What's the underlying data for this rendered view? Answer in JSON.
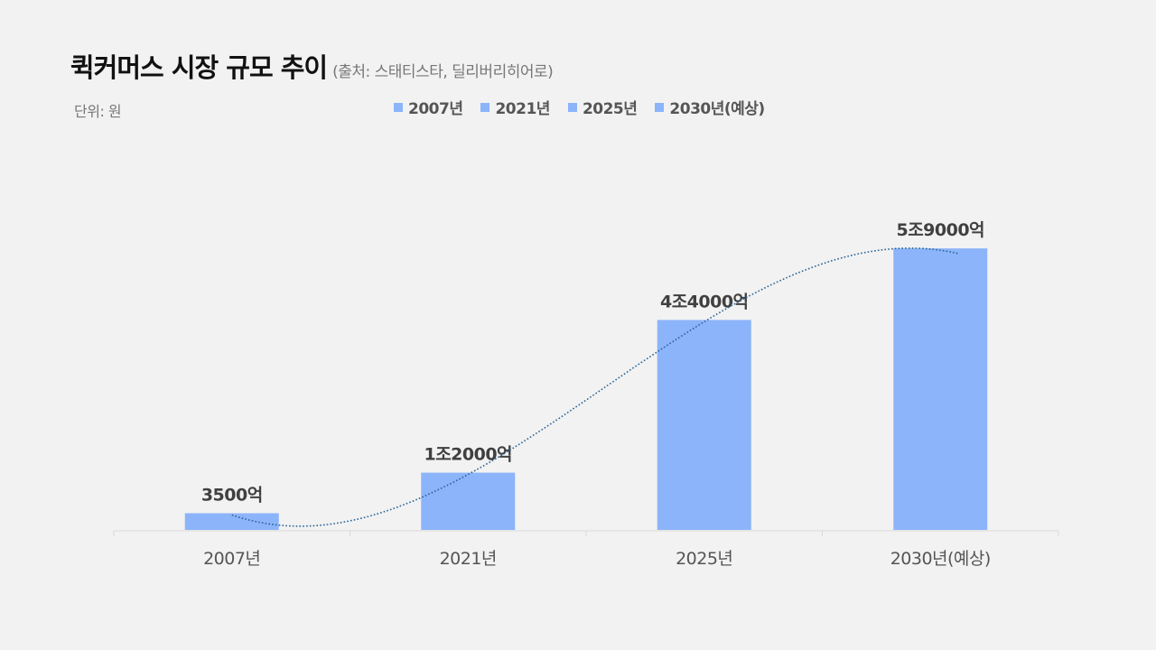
{
  "header": {
    "title": "퀵커머스 시장 규모 추이",
    "source": "(출처: 스태티스타, 딜리버리히어로)",
    "unit": "단위: 원"
  },
  "colors": {
    "bar": "#8cb4fa",
    "trendline": "#2a6496",
    "axis": "#d9d9d9",
    "label": "#404040",
    "tick": "#555555"
  },
  "chart_data": {
    "type": "bar",
    "title": "퀵커머스 시장 규모 추이",
    "ylabel": "",
    "xlabel": "",
    "unit": "단위: 원",
    "categories": [
      "2007년",
      "2021년",
      "2025년",
      "2030년(예상)"
    ],
    "values": [
      350000000000,
      1200000000000,
      4400000000000,
      5900000000000
    ],
    "data_labels": [
      "3500억",
      "1조2000억",
      "4조4000억",
      "5조9000억"
    ],
    "legend": [
      "2007년",
      "2021년",
      "2025년",
      "2030년(예상)"
    ],
    "legend_position": "top",
    "ylim": [
      0,
      7000000000000
    ],
    "trendline": "polynomial",
    "grid": false
  }
}
